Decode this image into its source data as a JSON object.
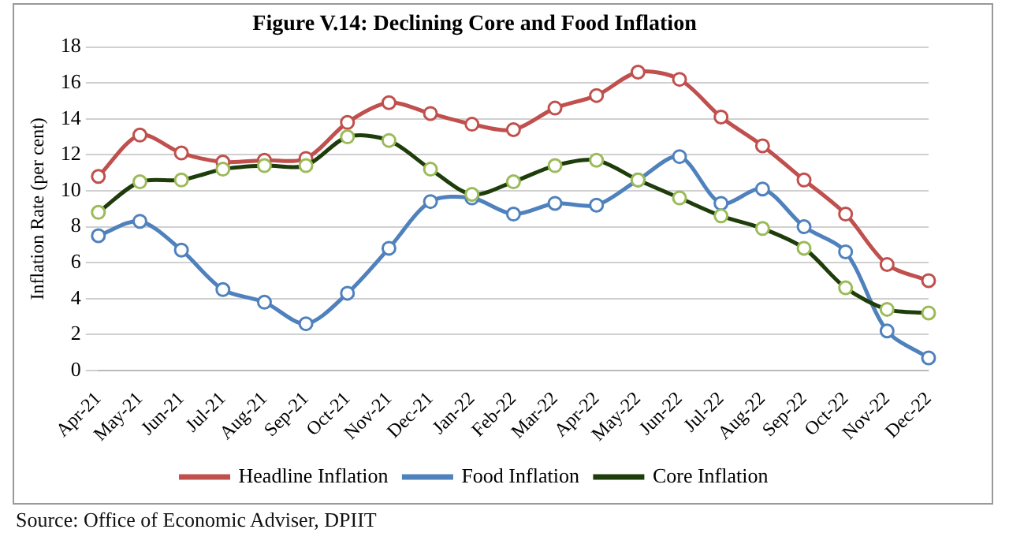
{
  "chart_data": {
    "type": "line",
    "title": "Figure V.14: Declining Core and Food Inflation",
    "ylabel": "Inflation Rate (per cent)",
    "categories": [
      "Apr-21",
      "May-21",
      "Jun-21",
      "Jul-21",
      "Aug-21",
      "Sep-21",
      "Oct-21",
      "Nov-21",
      "Dec-21",
      "Jan-22",
      "Feb-22",
      "Mar-22",
      "Apr-22",
      "May-22",
      "Jun-22",
      "Jul-22",
      "Aug-22",
      "Sep-22",
      "Oct-22",
      "Nov-22",
      "Dec-22"
    ],
    "series": [
      {
        "name": "Headline Inflation",
        "color": "#c0504d",
        "values": [
          10.8,
          13.1,
          12.1,
          11.6,
          11.7,
          11.8,
          13.8,
          14.9,
          14.3,
          13.7,
          13.4,
          14.6,
          15.3,
          16.6,
          16.2,
          14.1,
          12.5,
          10.6,
          8.7,
          5.9,
          5.0
        ]
      },
      {
        "name": "Food Inflation",
        "color": "#4f81bd",
        "values": [
          7.5,
          8.3,
          6.7,
          4.5,
          3.8,
          2.6,
          4.3,
          6.8,
          9.4,
          9.6,
          8.7,
          9.3,
          9.2,
          10.6,
          11.9,
          9.3,
          10.1,
          8.0,
          6.6,
          2.2,
          0.7
        ]
      },
      {
        "name": "Core Inflation",
        "color": "#1e3d0a",
        "values": [
          8.8,
          10.5,
          10.6,
          11.2,
          11.4,
          11.4,
          13.0,
          12.8,
          11.2,
          9.8,
          10.5,
          11.4,
          11.7,
          10.6,
          9.6,
          8.6,
          7.9,
          6.8,
          4.6,
          3.4,
          3.2
        ]
      }
    ],
    "ylim": [
      0,
      18
    ],
    "yticks": [
      0,
      2,
      4,
      6,
      8,
      10,
      12,
      14,
      16,
      18
    ],
    "grid": "y",
    "legend": "bottom",
    "marker": "circle",
    "line_style": "solid",
    "annotations": [
      "Source: Office of Economic Adviser, DPIIT"
    ]
  }
}
